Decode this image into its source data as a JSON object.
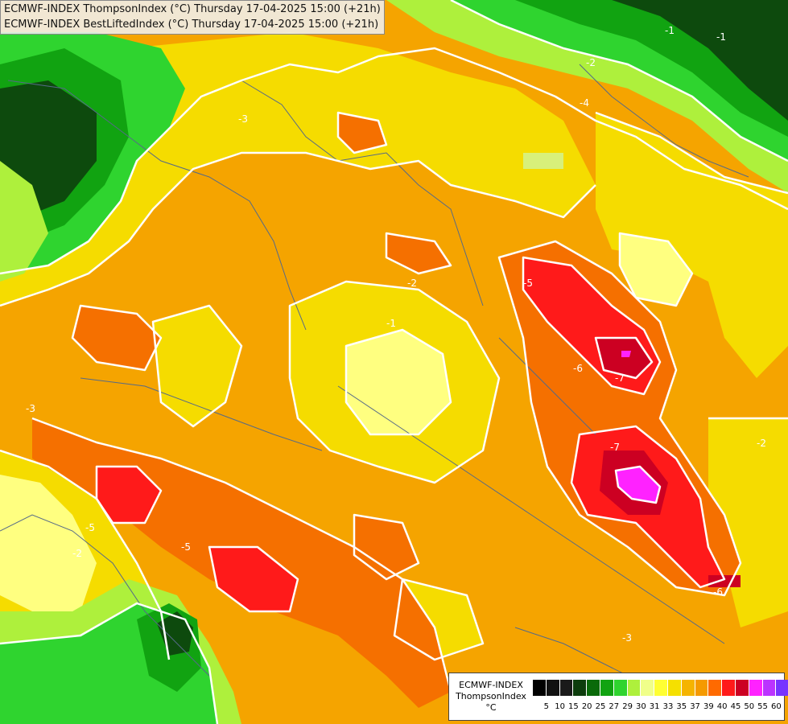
{
  "header": {
    "line1": "ECMWF-INDEX ThompsonIndex (°C) Thursday 17-04-2025 15:00 (+21h)",
    "line2": "ECMWF-INDEX BestLiftedIndex (°C) Thursday 17-04-2025 15:00 (+21h)"
  },
  "legend": {
    "title_line1": "ECMWF-INDEX",
    "title_line2": "ThompsonIndex",
    "title_line3": "°C",
    "colors": [
      "#000000",
      "#111111",
      "#1a1a1a",
      "#0d3d0d",
      "#0a6a0a",
      "#11a311",
      "#2fd42f",
      "#aef03c",
      "#f0ff8a",
      "#ffff33",
      "#f5e000",
      "#f5b400",
      "#f59a00",
      "#ff6a00",
      "#ff1a1a",
      "#cc0022",
      "#ff22ff",
      "#bb33ff",
      "#7733ff",
      "#2233ff"
    ],
    "ticks": [
      "5",
      "10",
      "15",
      "20",
      "25",
      "27",
      "29",
      "30",
      "31",
      "33",
      "35",
      "37",
      "39",
      "40",
      "45",
      "50",
      "55",
      "60"
    ]
  },
  "contour_labels": [
    "-3",
    "-2",
    "-1",
    "-2",
    "-5",
    "-6",
    "-7",
    "-7",
    "-5",
    "-5",
    "-6",
    "-3",
    "-2",
    "-1",
    "-4",
    "-3",
    "-2",
    "-1"
  ]
}
